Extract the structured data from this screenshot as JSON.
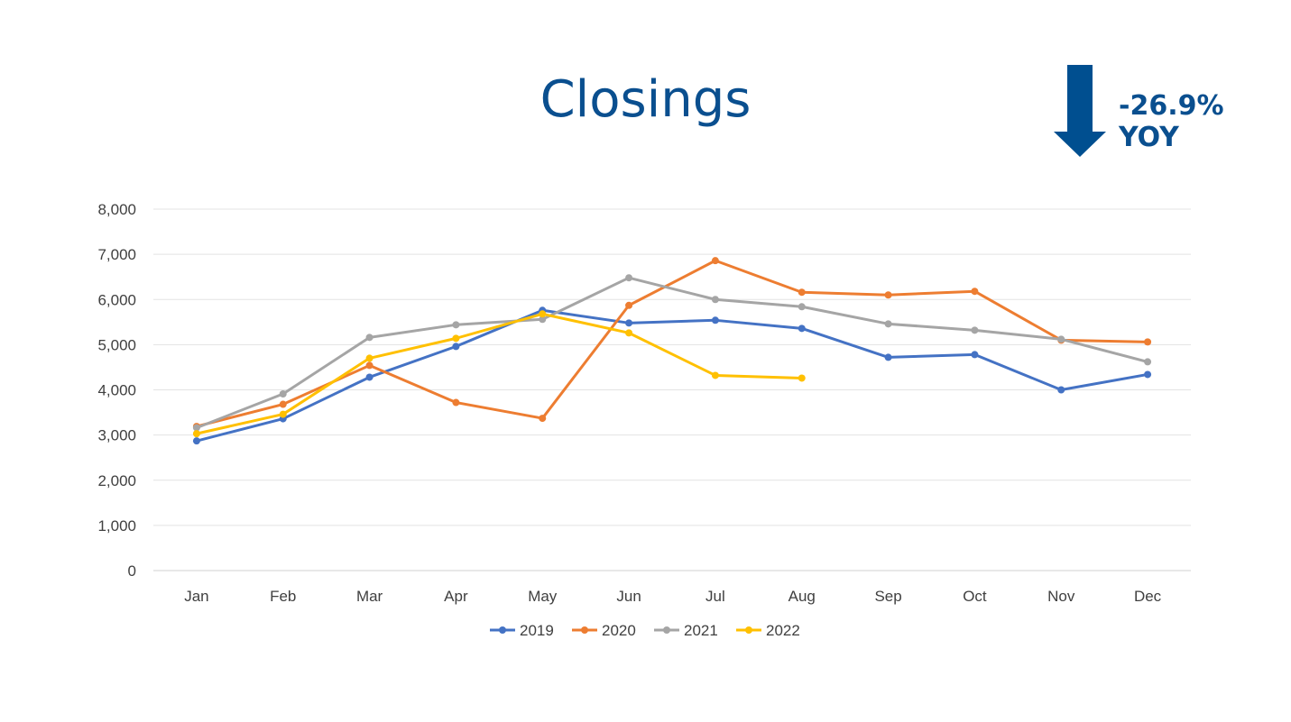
{
  "header": {
    "title": "Closings",
    "yoy_label": "-26.9% YOY",
    "arrow_icon": "down-arrow-icon",
    "accent_color": "#0a4f8f"
  },
  "chart_data": {
    "type": "line",
    "title": "Closings",
    "xlabel": "",
    "ylabel": "",
    "ylim": [
      0,
      8000
    ],
    "ytick_labels": [
      "0",
      "1,000",
      "2,000",
      "3,000",
      "4,000",
      "5,000",
      "6,000",
      "7,000",
      "8,000"
    ],
    "categories": [
      "Jan",
      "Feb",
      "Mar",
      "Apr",
      "May",
      "Jun",
      "Jul",
      "Aug",
      "Sep",
      "Oct",
      "Nov",
      "Dec"
    ],
    "grid": true,
    "legend_position": "bottom",
    "series": [
      {
        "name": "2019",
        "color": "#4472c4",
        "values": [
          2870,
          3360,
          4280,
          4960,
          5760,
          5480,
          5540,
          5360,
          4720,
          4780,
          4000,
          4340
        ]
      },
      {
        "name": "2020",
        "color": "#ed7d31",
        "values": [
          3190,
          3680,
          4540,
          3720,
          3370,
          5870,
          6860,
          6160,
          6100,
          6180,
          5100,
          5060
        ]
      },
      {
        "name": "2021",
        "color": "#a5a5a5",
        "values": [
          3160,
          3910,
          5160,
          5440,
          5560,
          6480,
          6000,
          5840,
          5460,
          5320,
          5120,
          4620
        ]
      },
      {
        "name": "2022",
        "color": "#ffc000",
        "values": [
          3030,
          3460,
          4700,
          5140,
          5680,
          5260,
          4320,
          4260,
          null,
          null,
          null,
          null
        ]
      }
    ]
  }
}
